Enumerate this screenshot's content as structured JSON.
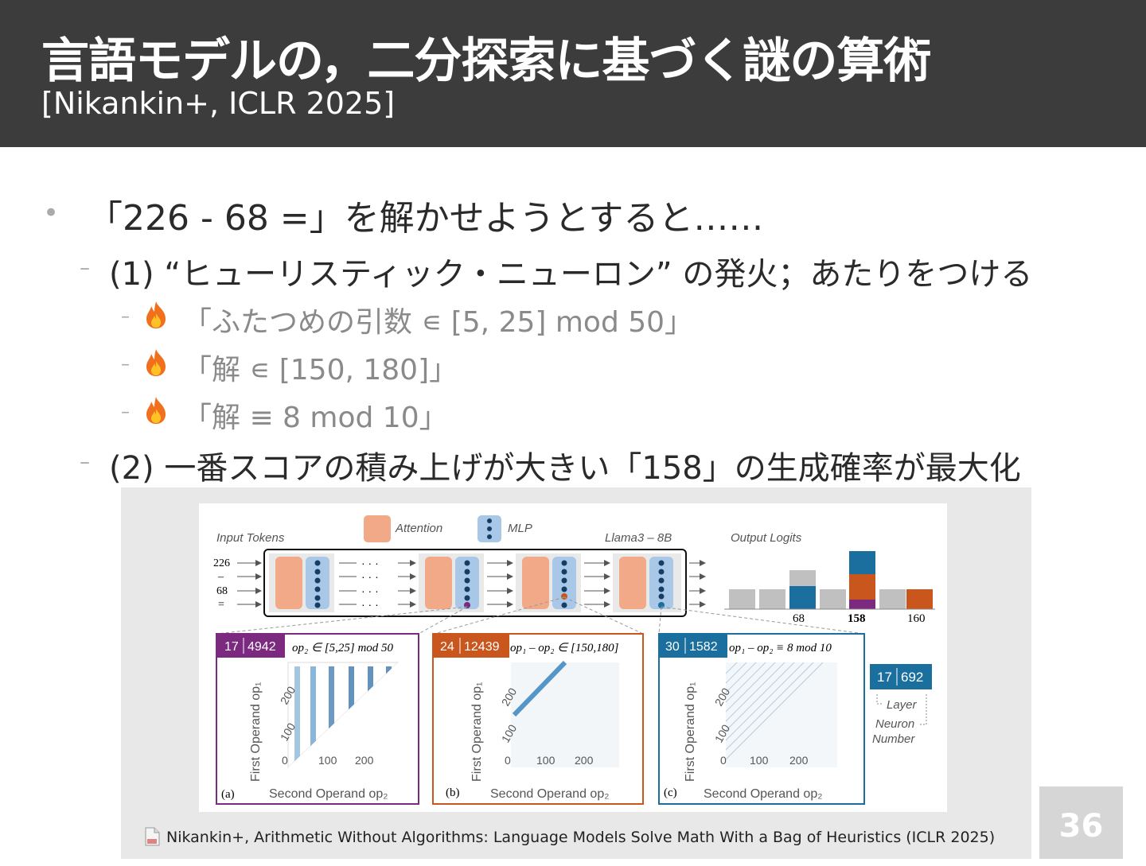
{
  "slide": {
    "title": "言語モデルの，二分探索に基づく謎の算術",
    "subtitle": "[Nikankin+, ICLR 2025]",
    "bullet": "「226 - 68 =」を解かせようとすると……",
    "item1": "(1) “ヒューリスティック・ニューロン” の発火；あたりをつける",
    "sub": [
      "「ふたつめの引数 ∊ [5, 25] mod 50」",
      "「解 ∊ [150, 180]」",
      "「解 ≡ 8 mod 10」"
    ],
    "item2": "(2) 一番スコアの積み上げが大きい「158」の生成確率が最大化",
    "caption": "Nikankin+, Arithmetic Without Algorithms: Language Models Solve Math With a Bag of Heuristics (ICLR 2025)",
    "page_number": "36",
    "icons": [
      "fire-icon",
      "document-icon"
    ]
  },
  "figure": {
    "input_tokens_label": "Input Tokens",
    "tokens": [
      "226",
      "–",
      "68",
      "="
    ],
    "legend": [
      "Attention",
      "MLP"
    ],
    "model_label": "Llama3 – 8B",
    "output_label": "Output Logits",
    "logit_labels": [
      "68",
      "158",
      "160"
    ],
    "panels": [
      {
        "layer": "17",
        "neuron": "4942",
        "rule": "op₂ ∈ [5,25] mod 50",
        "tag": "(a)",
        "color": "#7b2a7f"
      },
      {
        "layer": "24",
        "neuron": "12439",
        "rule": "op₁ – op₂ ∈ [150,180]",
        "tag": "(b)",
        "color": "#c8561d"
      },
      {
        "layer": "30",
        "neuron": "1582",
        "rule": "op₁ – op₂ ≡ 8 mod 10",
        "tag": "(c)",
        "color": "#1a6f9e"
      }
    ],
    "axis_y_label": "First Operand op₁",
    "axis_x_label": "Second Operand op₂",
    "y_ticks": [
      "100",
      "200"
    ],
    "x_ticks": [
      "0",
      "100",
      "200"
    ],
    "key": {
      "layer": "17",
      "neuron": "692",
      "layer_label": "Layer",
      "neuron_label": "Neuron",
      "number_label": "Number"
    }
  }
}
